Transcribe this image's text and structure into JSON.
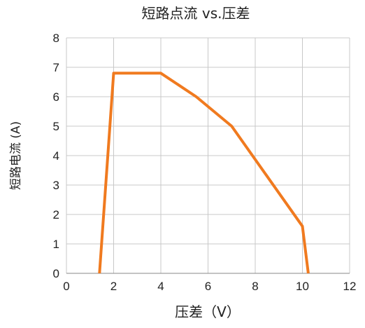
{
  "chart_data": {
    "type": "line",
    "title": "短路点流  vs.压差",
    "xlabel": "压差（V）",
    "ylabel": "短路电流 (A)",
    "xlim": [
      0,
      12
    ],
    "ylim": [
      0,
      8
    ],
    "xticks": [
      0,
      2,
      4,
      6,
      8,
      10,
      12
    ],
    "yticks": [
      0,
      1,
      2,
      3,
      4,
      5,
      6,
      7,
      8
    ],
    "grid": true,
    "series": [
      {
        "color": "#f07a1f",
        "x": [
          1.4,
          2.0,
          4.0,
          5.5,
          7.0,
          10.0,
          10.25
        ],
        "y": [
          0,
          6.8,
          6.8,
          6.0,
          5.0,
          1.6,
          0
        ]
      }
    ]
  },
  "colors": {
    "grid": "#c8c8c8",
    "axis": "#888888"
  }
}
